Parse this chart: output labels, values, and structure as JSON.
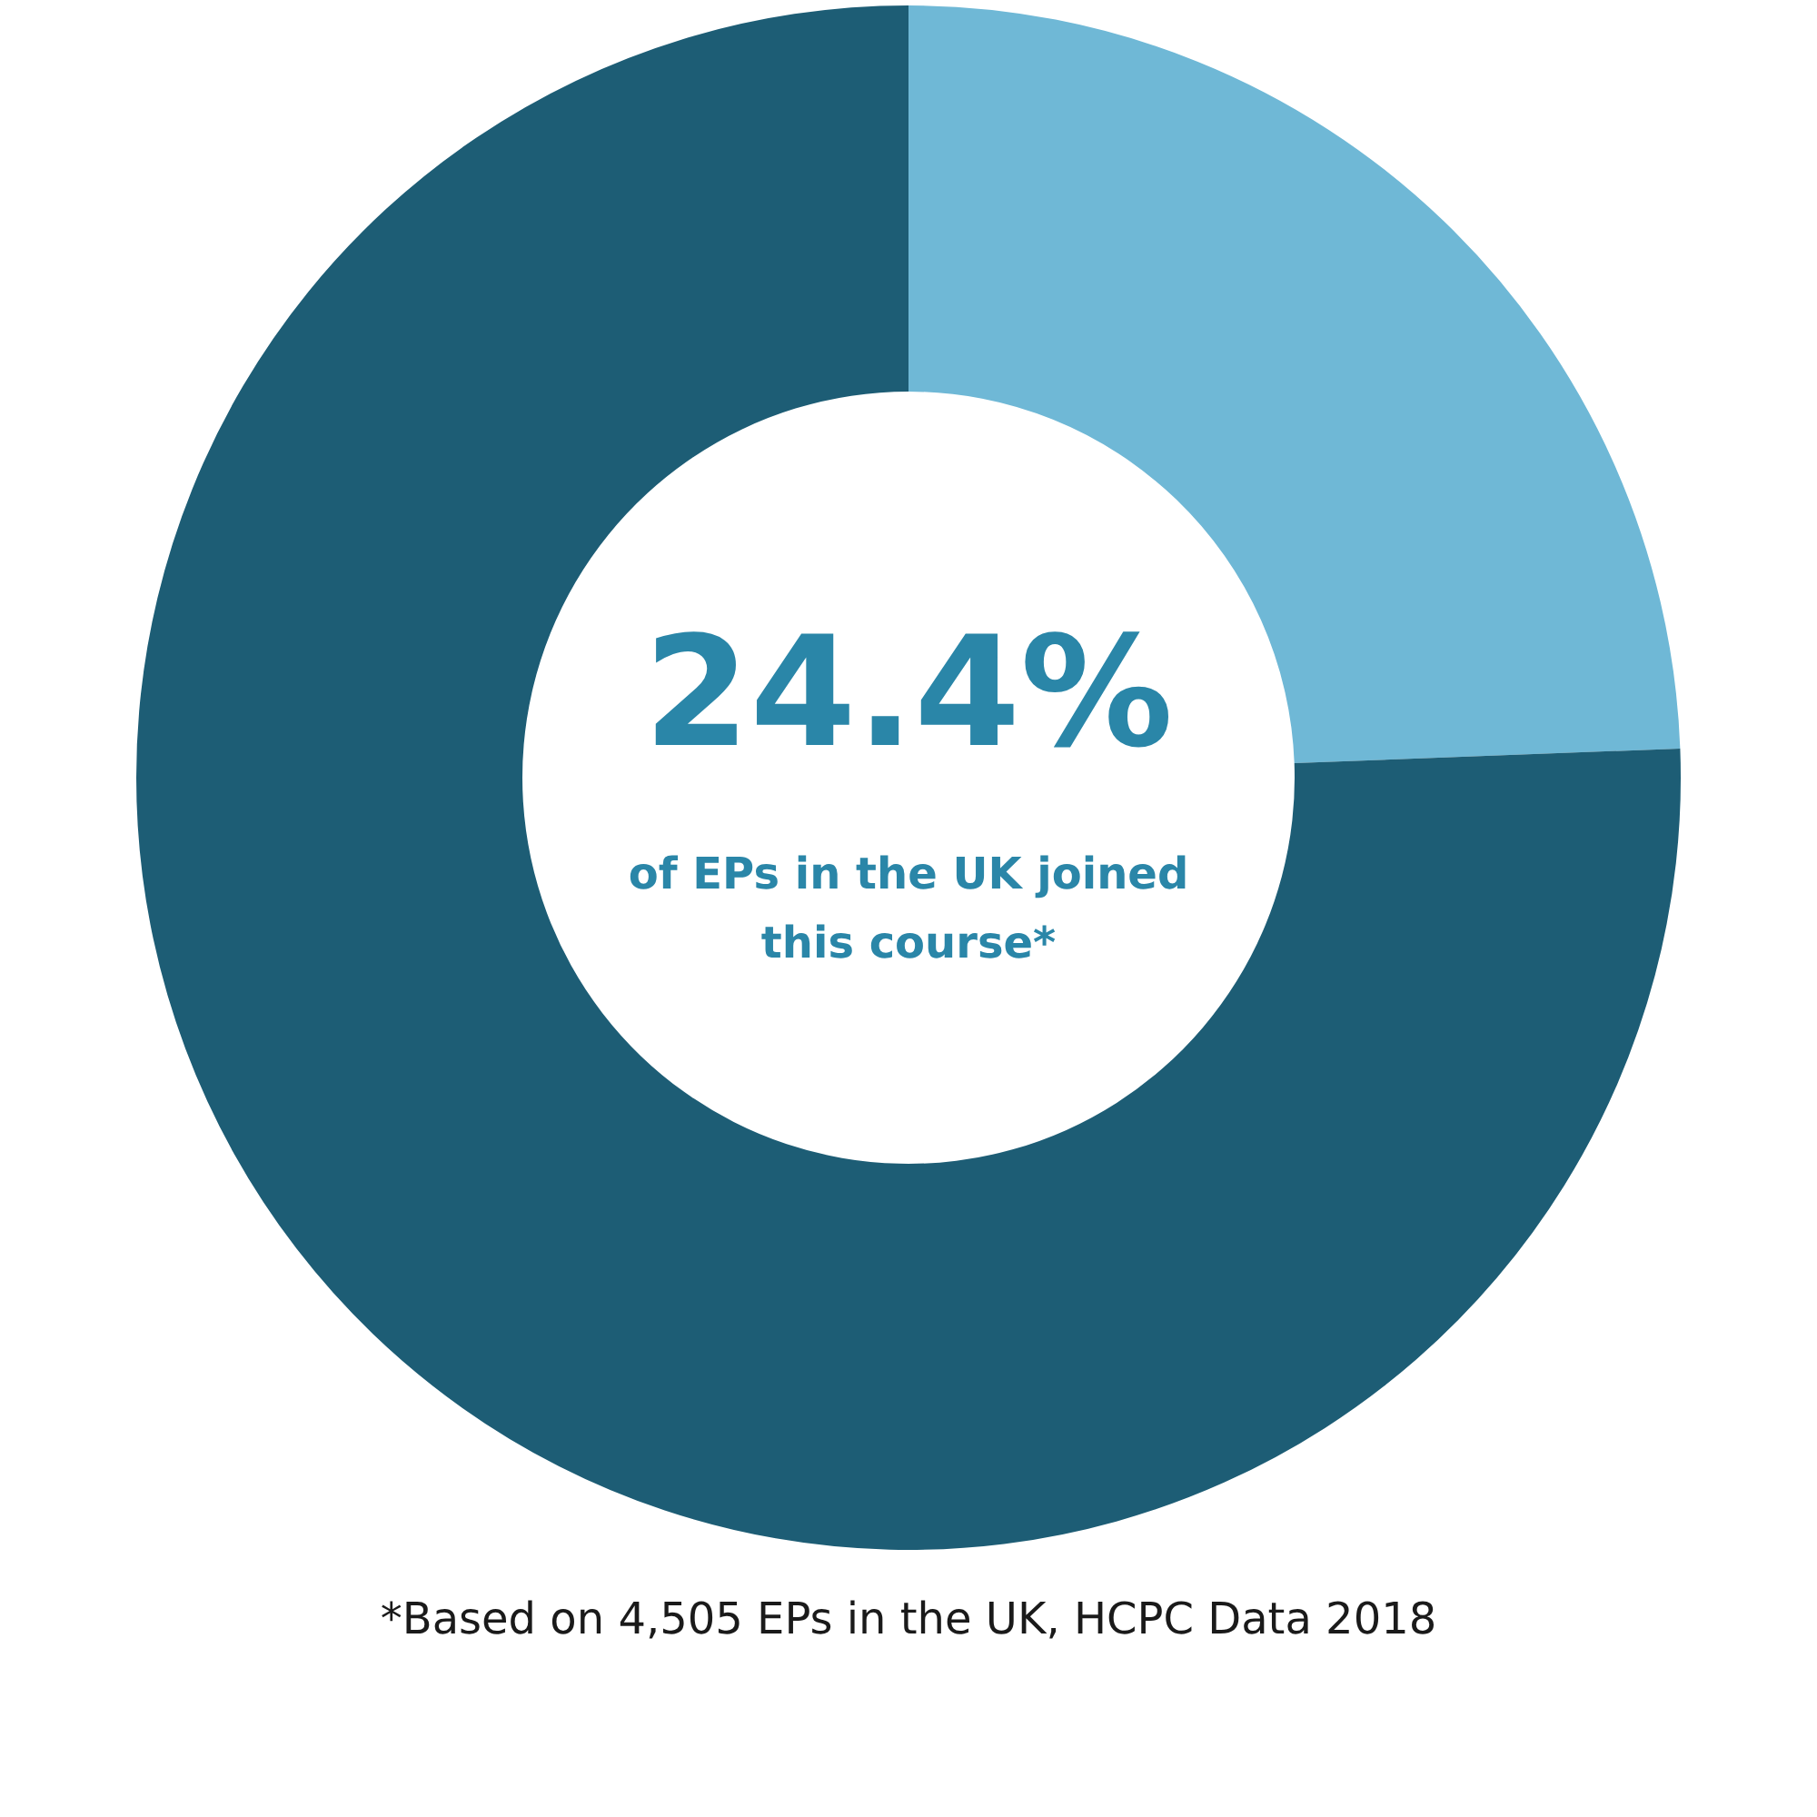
{
  "chart_data": {
    "type": "donut",
    "categories": [
      null,
      null
    ],
    "values": [
      24.4,
      75.6
    ],
    "colors": [
      "#6fb8d6",
      "#1d5d75"
    ],
    "value_labels": [
      "24.4%",
      null
    ],
    "annotations": [
      "of EPs in the UK joined this course*",
      "*Based on 4,505 EPs in the UK, HCPC Data 2018"
    ],
    "legend": false
  }
}
